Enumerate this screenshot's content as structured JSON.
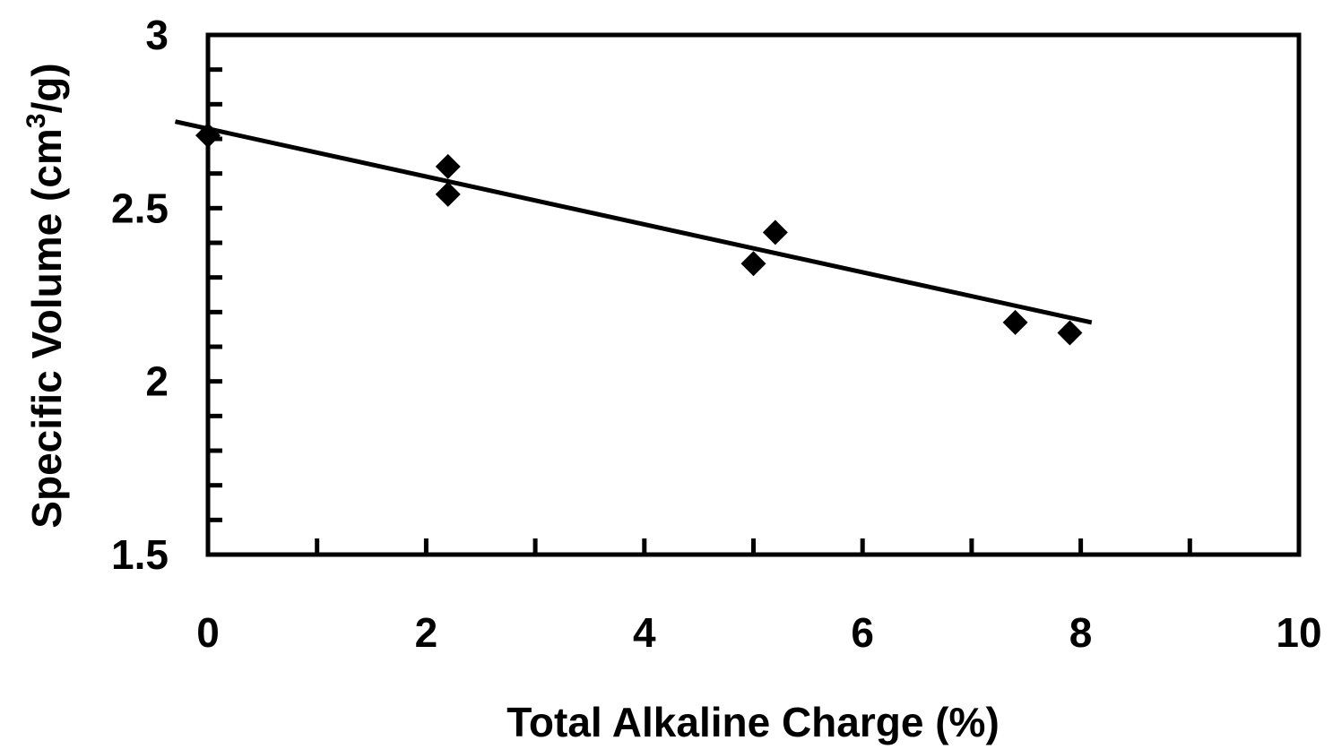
{
  "chart_data": {
    "type": "scatter",
    "xlabel": "Total Alkaline Charge (%)",
    "ylabel_main": "Specific Volume (cm",
    "ylabel_sup": "3",
    "ylabel_tail": "/g)",
    "xlim": [
      0,
      10
    ],
    "ylim": [
      1.5,
      3
    ],
    "x_ticks": [
      0,
      2,
      4,
      6,
      8,
      10
    ],
    "x_tick_labels": [
      "0",
      "2",
      "4",
      "6",
      "8",
      "10"
    ],
    "x_minor_ticks": [
      1,
      3,
      5,
      7,
      9
    ],
    "y_ticks": [
      1.5,
      2,
      2.5,
      3
    ],
    "y_tick_labels": [
      "1.5",
      "2",
      "2.5",
      "3"
    ],
    "y_minor_ticks": [
      1.6,
      1.7,
      1.8,
      1.9,
      2.1,
      2.2,
      2.3,
      2.4,
      2.6,
      2.7,
      2.8,
      2.9
    ],
    "grid": false,
    "legend": "none",
    "marker": "diamond",
    "marker_color": "#000000",
    "series": [
      {
        "points": [
          {
            "x": 0.0,
            "y": 2.71
          },
          {
            "x": 2.2,
            "y": 2.62
          },
          {
            "x": 2.2,
            "y": 2.54
          },
          {
            "x": 5.0,
            "y": 2.34
          },
          {
            "x": 5.2,
            "y": 2.43
          },
          {
            "x": 7.4,
            "y": 2.17
          },
          {
            "x": 7.9,
            "y": 2.14
          }
        ]
      }
    ],
    "trendline": {
      "x": [
        -0.3,
        8.1
      ],
      "y": [
        2.75,
        2.17
      ]
    }
  }
}
